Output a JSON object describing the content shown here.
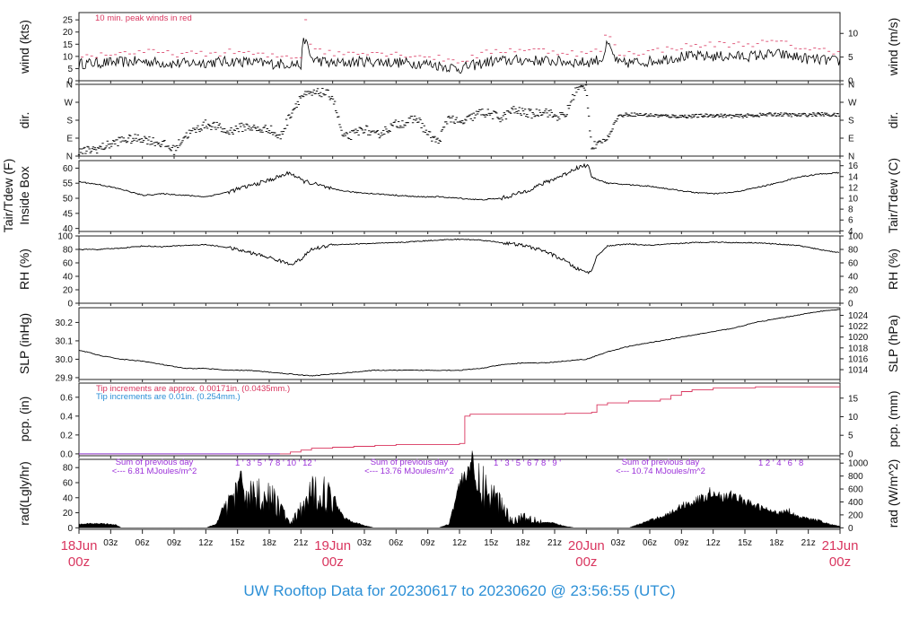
{
  "colors": {
    "line": "#000000",
    "peak": "#d9365f",
    "precip_red": "#d9365f",
    "precip_blue": "#2b8fd6",
    "summary_text": "#9b30d9",
    "date_text": "#d9365f",
    "footer_text": "#2b8fd6"
  },
  "footer": {
    "prefix": "UW Rooftop Data for",
    "start": "20230617",
    "mid": "to",
    "end": "20230620 @ 23:56:55",
    "tz": "(UTC)"
  },
  "time_axis": {
    "hour_ticks": [
      "03z",
      "06z",
      "09z",
      "12z",
      "15z",
      "18z",
      "21z"
    ],
    "days": [
      {
        "day": "18Jun",
        "hour": "00z"
      },
      {
        "day": "19Jun",
        "hour": "00z"
      },
      {
        "day": "20Jun",
        "hour": "00z"
      },
      {
        "day": "21Jun",
        "hour": "00z"
      }
    ]
  },
  "wind": {
    "left_label": "wind (kts)",
    "right_label": "wind (m/s)",
    "note": "10 min. peak winds in red",
    "left_ticks": [
      "0",
      "5",
      "10",
      "15",
      "20",
      "25"
    ],
    "right_ticks": [
      "0",
      "5",
      "10"
    ]
  },
  "dir": {
    "left_label": "dir.",
    "right_label": "dir.",
    "ticks": [
      "N",
      "E",
      "S",
      "W",
      "N"
    ]
  },
  "temp": {
    "left_label_top": "Tair/Tdew (F)",
    "left_label_bottom": "Inside Box",
    "right_label": "Tair/Tdew (C)",
    "left_ticks": [
      "40",
      "45",
      "50",
      "55",
      "60"
    ],
    "right_ticks": [
      "4",
      "6",
      "8",
      "10",
      "12",
      "14",
      "16"
    ]
  },
  "rh": {
    "label": "RH (%)",
    "ticks": [
      "0",
      "20",
      "40",
      "60",
      "80",
      "100"
    ]
  },
  "slp": {
    "left_label": "SLP (inHg)",
    "right_label": "SLP (hPa)",
    "left_ticks": [
      "29.9",
      "30.0",
      "30.1",
      "30.2"
    ],
    "right_ticks": [
      "1014",
      "1016",
      "1018",
      "1020",
      "1022",
      "1024"
    ]
  },
  "pcp": {
    "left_label": "pcp. (in)",
    "right_label": "pcp. (mm)",
    "note_red": "Tip increments are approx. 0.00171in. (0.0435mm.)",
    "note_blue": "Tip increments are 0.01in. (0.254mm.)",
    "left_ticks": [
      "0.0",
      "0.2",
      "0.4",
      "0.6"
    ],
    "right_ticks": [
      "0",
      "5",
      "10",
      "15"
    ]
  },
  "rad": {
    "left_label": "rad(Lgly/hr)",
    "right_label": "rad (W/m^2)",
    "left_ticks": [
      "0",
      "20",
      "40",
      "60",
      "80"
    ],
    "right_ticks": [
      "0",
      "200",
      "400",
      "600",
      "800",
      "1000"
    ],
    "summaries": [
      {
        "line1": "Sum of previous day",
        "line2": "<--- 6.81 MJoules/m^2"
      },
      {
        "line1": "Sum of previous day",
        "line2": "<--- 13.76 MJoules/m^2"
      },
      {
        "line1": "Sum of previous day",
        "line2": "<--- 10.74 MJoules/m^2"
      }
    ],
    "hour_marks": [
      "1 ' 3 ' 5 ' 7  8 ' 10 ' 12 '",
      "1 ' 3 ' 5 ' 6  7  8 ' 9 '",
      "1  2 ' 4 ' 6 ' 8"
    ]
  },
  "chart_data": [
    {
      "type": "line",
      "name": "wind",
      "x_unit": "hours since 18Jun 00z",
      "xlim": [
        0,
        72
      ],
      "ylim": [
        0,
        28
      ],
      "y_unit": "kts",
      "series": [
        {
          "name": "wind speed",
          "x": [
            0,
            3,
            6,
            9,
            12,
            15,
            18,
            20,
            21,
            21.3,
            22,
            24,
            27,
            30,
            33,
            36,
            39,
            42,
            45,
            48,
            49.5,
            50,
            51,
            54,
            57,
            60,
            63,
            66,
            69,
            72
          ],
          "y": [
            7,
            7.5,
            8,
            7,
            7.5,
            8,
            7,
            7,
            6.5,
            18,
            9,
            7,
            8,
            7.5,
            7,
            5,
            8,
            8.5,
            8,
            7.5,
            9,
            15,
            7,
            8,
            10,
            10,
            10,
            11,
            9,
            8
          ]
        },
        {
          "name": "10 min. peak winds",
          "x": [
            0,
            3,
            6,
            9,
            12,
            15,
            18,
            20,
            21,
            21.3,
            22,
            24,
            27,
            30,
            33,
            36,
            39,
            42,
            45,
            48,
            49.5,
            50,
            51,
            54,
            57,
            60,
            63,
            66,
            69,
            72
          ],
          "y": [
            10,
            11,
            12,
            11,
            11,
            12,
            10,
            10,
            10,
            28,
            14,
            11,
            12,
            11,
            10,
            8,
            12,
            13,
            12,
            11,
            13,
            21,
            11,
            12,
            14,
            15,
            15,
            16,
            13,
            12
          ]
        }
      ]
    },
    {
      "type": "scatter",
      "name": "dir",
      "xlim": [
        0,
        72
      ],
      "ylim": [
        0,
        360
      ],
      "y_unit": "degrees",
      "x": [
        0,
        2,
        4,
        6,
        8,
        9,
        10,
        11,
        12,
        13,
        14,
        15,
        16,
        17,
        18,
        19,
        20,
        21,
        22,
        23,
        24,
        25,
        26,
        27,
        28,
        29,
        30,
        31,
        32,
        33,
        34,
        35,
        36,
        37,
        38,
        39,
        40,
        41,
        42,
        43,
        44,
        45,
        46,
        47,
        48,
        48.5,
        49,
        50,
        51,
        52,
        54,
        56,
        58,
        60,
        62,
        64,
        66,
        68,
        70,
        72
      ],
      "y": [
        20,
        40,
        80,
        90,
        60,
        30,
        100,
        130,
        160,
        150,
        120,
        140,
        150,
        130,
        140,
        90,
        210,
        300,
        310,
        320,
        300,
        90,
        110,
        140,
        100,
        130,
        160,
        170,
        190,
        110,
        70,
        200,
        160,
        190,
        220,
        210,
        190,
        230,
        220,
        210,
        230,
        200,
        200,
        330,
        350,
        40,
        60,
        90,
        200,
        210,
        205,
        200,
        200,
        205,
        200,
        205,
        210,
        205,
        210,
        205
      ]
    },
    {
      "type": "line",
      "name": "Tair/Tdew",
      "xlim": [
        0,
        72
      ],
      "ylim": [
        39,
        63
      ],
      "y_unit": "F",
      "x": [
        0,
        2,
        4,
        6,
        8,
        10,
        12,
        14,
        16,
        18,
        20,
        21,
        22,
        24,
        26,
        28,
        30,
        32,
        34,
        36,
        38,
        40,
        42,
        44,
        46,
        47,
        48,
        48.3,
        48.5,
        50,
        52,
        54,
        56,
        58,
        60,
        62,
        64,
        66,
        68,
        70,
        72
      ],
      "y": [
        55.5,
        54.5,
        53,
        51,
        51.5,
        51,
        50.5,
        52,
        54,
        56,
        58.5,
        56,
        55,
        53,
        52,
        51.5,
        51,
        50.5,
        50.5,
        50,
        49.5,
        50,
        52,
        55,
        58,
        60,
        61,
        60,
        57,
        55,
        54.5,
        54,
        53,
        52,
        51.5,
        52,
        53.5,
        55,
        57,
        58,
        58.5
      ]
    },
    {
      "type": "line",
      "name": "RH",
      "xlim": [
        0,
        72
      ],
      "ylim": [
        0,
        100
      ],
      "y_unit": "%",
      "x": [
        0,
        2,
        4,
        6,
        8,
        10,
        12,
        14,
        16,
        18,
        20,
        21,
        22,
        24,
        26,
        28,
        30,
        32,
        34,
        36,
        38,
        40,
        42,
        44,
        46,
        47,
        48,
        48.5,
        49,
        50,
        52,
        54,
        56,
        58,
        60,
        62,
        64,
        66,
        68,
        70,
        72
      ],
      "y": [
        80,
        80,
        82,
        85,
        84,
        86,
        87,
        83,
        76,
        68,
        58,
        65,
        80,
        87,
        88,
        89,
        90,
        92,
        94,
        95,
        94,
        90,
        86,
        78,
        63,
        52,
        46,
        48,
        70,
        85,
        88,
        86,
        88,
        90,
        91,
        90,
        90,
        88,
        86,
        80,
        75
      ]
    },
    {
      "type": "line",
      "name": "SLP",
      "xlim": [
        0,
        72
      ],
      "ylim": [
        29.89,
        30.28
      ],
      "y_unit": "inHg",
      "x": [
        0,
        2,
        4,
        6,
        8,
        10,
        12,
        14,
        16,
        18,
        20,
        22,
        24,
        26,
        28,
        30,
        32,
        34,
        36,
        38,
        40,
        42,
        44,
        46,
        48,
        50,
        52,
        54,
        56,
        58,
        60,
        62,
        64,
        66,
        68,
        70,
        72
      ],
      "y": [
        30.05,
        30.02,
        30.0,
        29.99,
        29.97,
        29.95,
        29.95,
        29.94,
        29.94,
        29.93,
        29.92,
        29.91,
        29.92,
        29.93,
        29.94,
        29.94,
        29.94,
        29.94,
        29.94,
        29.95,
        29.97,
        29.98,
        29.98,
        29.99,
        30.0,
        30.04,
        30.07,
        30.09,
        30.11,
        30.13,
        30.15,
        30.17,
        30.2,
        30.22,
        30.24,
        30.26,
        30.27
      ]
    },
    {
      "type": "line",
      "name": "pcp",
      "xlim": [
        0,
        72
      ],
      "ylim": [
        0,
        0.75
      ],
      "y_unit": "in",
      "x": [
        0,
        19,
        20,
        21,
        22,
        24,
        26,
        28,
        30,
        32,
        34,
        36,
        36.5,
        37,
        38,
        40,
        44,
        46,
        47,
        48,
        48.5,
        49,
        50,
        52,
        54,
        55,
        56,
        57,
        58,
        60,
        64,
        68,
        72
      ],
      "y": [
        0,
        0,
        0.02,
        0.04,
        0.06,
        0.07,
        0.08,
        0.09,
        0.1,
        0.1,
        0.1,
        0.11,
        0.4,
        0.42,
        0.42,
        0.42,
        0.42,
        0.43,
        0.43,
        0.43,
        0.44,
        0.52,
        0.54,
        0.56,
        0.56,
        0.58,
        0.62,
        0.66,
        0.68,
        0.7,
        0.71,
        0.71,
        0.71
      ]
    },
    {
      "type": "area",
      "name": "rad",
      "xlim": [
        0,
        72
      ],
      "ylim": [
        0,
        90
      ],
      "y_unit": "Lgly/hr",
      "x": [
        0,
        2,
        3.5,
        4,
        10,
        12,
        13,
        14,
        15,
        16,
        17,
        18,
        19,
        20,
        21,
        22,
        23,
        24,
        25,
        26,
        27,
        28,
        33,
        34,
        35,
        36,
        37,
        38,
        39,
        40,
        41,
        42,
        43,
        44,
        45,
        46,
        47,
        48,
        52,
        53,
        54,
        56,
        57,
        58,
        59,
        60,
        61,
        62,
        63,
        64,
        65,
        66,
        67,
        68,
        69,
        70,
        71,
        72
      ],
      "y": [
        5,
        6,
        4,
        0,
        0,
        0,
        5,
        40,
        62,
        60,
        55,
        50,
        35,
        5,
        30,
        55,
        60,
        45,
        15,
        8,
        3,
        0,
        0,
        0,
        5,
        60,
        85,
        70,
        55,
        40,
        10,
        20,
        15,
        8,
        6,
        2,
        0,
        0,
        0,
        5,
        10,
        20,
        30,
        35,
        40,
        50,
        40,
        45,
        35,
        30,
        25,
        20,
        25,
        15,
        12,
        10,
        5,
        2
      ]
    }
  ]
}
